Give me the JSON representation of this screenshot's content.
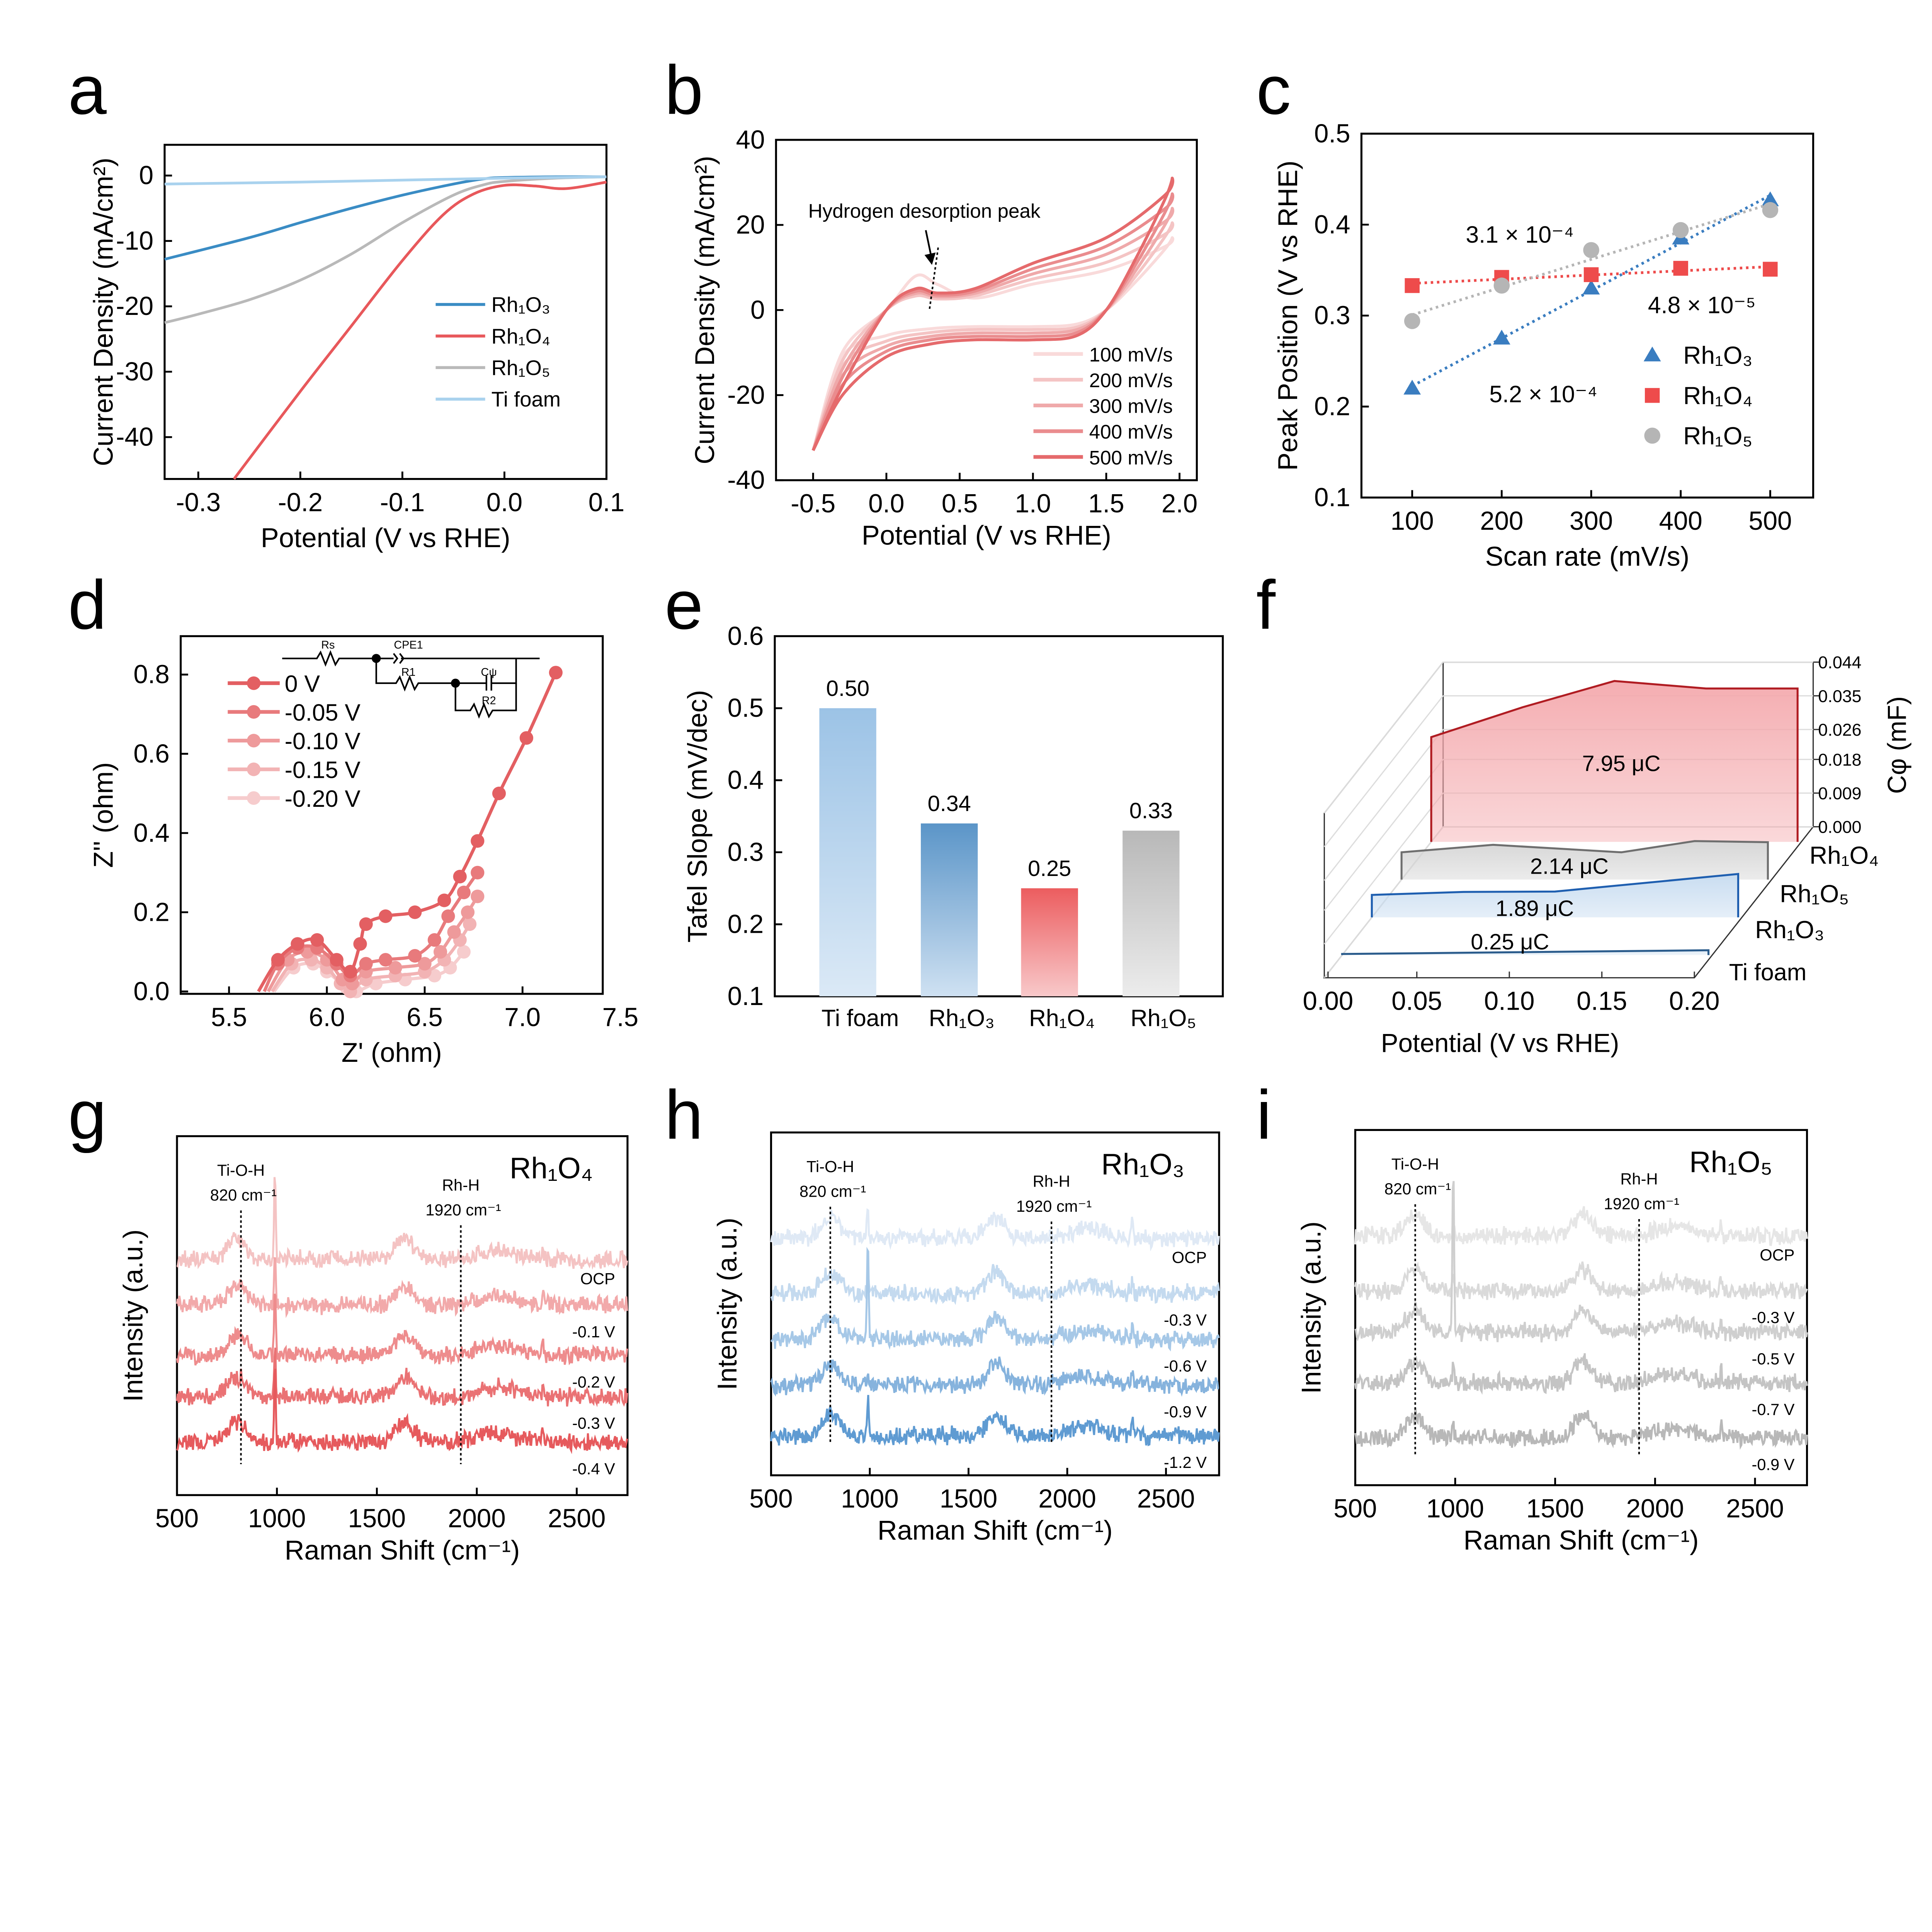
{
  "chart_data": [
    {
      "panel": "a",
      "type": "line",
      "xlabel": "Potential (V vs RHE)",
      "ylabel": "Current Density (mA/cm²)",
      "xlim": [
        -0.333,
        0.1
      ],
      "ylim": [
        -46.4,
        4.7
      ],
      "xticks": [
        -0.3,
        -0.2,
        -0.1,
        0.0,
        0.1
      ],
      "xtick_labels": [
        "-0.3",
        "-0.2",
        "-0.1",
        "0.0",
        "0.1"
      ],
      "yticks": [
        0,
        -10,
        -20,
        -30,
        -40
      ],
      "ytick_labels": [
        "0",
        "-10",
        "-20",
        "-30",
        "-40"
      ],
      "legend_position": "lower-right",
      "series": [
        {
          "name": "Rh₁O₃",
          "color": "#3a8cc4",
          "x": [
            -0.333,
            -0.25,
            -0.2,
            -0.15,
            -0.1,
            -0.05,
            -0.02,
            0.0,
            0.05,
            0.1
          ],
          "y": [
            -12.8,
            -9.5,
            -7.2,
            -5.0,
            -3.0,
            -1.3,
            -0.5,
            -0.3,
            -0.2,
            -0.2
          ]
        },
        {
          "name": "Rh₁O₄",
          "color": "#e8585b",
          "x": [
            -0.265,
            -0.2,
            -0.15,
            -0.1,
            -0.06,
            -0.03,
            0.0,
            0.03,
            0.06,
            0.1
          ],
          "y": [
            -46.4,
            -33,
            -23,
            -13,
            -6,
            -2.8,
            -1.5,
            -1.6,
            -2.0,
            -1.0
          ]
        },
        {
          "name": "Rh₁O₅",
          "color": "#b9b9b9",
          "x": [
            -0.333,
            -0.3,
            -0.25,
            -0.2,
            -0.15,
            -0.1,
            -0.05,
            -0.02,
            0.0,
            0.05,
            0.1
          ],
          "y": [
            -22.5,
            -21.2,
            -19,
            -16,
            -12,
            -7.2,
            -3.0,
            -1.4,
            -0.9,
            -0.4,
            -0.2
          ]
        },
        {
          "name": "Ti foam",
          "color": "#a9d2ee",
          "x": [
            -0.333,
            -0.2,
            -0.1,
            0.0,
            0.1
          ],
          "y": [
            -1.3,
            -1.0,
            -0.7,
            -0.4,
            -0.2
          ]
        }
      ]
    },
    {
      "panel": "b",
      "type": "line",
      "xlabel": "Potential (V vs RHE)",
      "ylabel": "Current Density (mA/cm²)",
      "xlim": [
        -0.753,
        2.118
      ],
      "ylim": [
        -40,
        40
      ],
      "xticks": [
        -0.5,
        0.0,
        0.5,
        1.0,
        1.5,
        2.0
      ],
      "xtick_labels": [
        "-0.5",
        "0.0",
        "0.5",
        "1.0",
        "1.5",
        "2.0"
      ],
      "yticks": [
        40,
        20,
        0,
        -20,
        -40
      ],
      "ytick_labels": [
        "40",
        "20",
        "0",
        "-20",
        "-40"
      ],
      "annotation": "Hydrogen desorption peak",
      "legend_position": "lower-right",
      "x": [
        -0.5,
        -0.3,
        0,
        0.3,
        0.6,
        1.0,
        1.3,
        1.5,
        1.7,
        1.9,
        1.95,
        1.9,
        1.5,
        1.0,
        0.6,
        0.35,
        0.2,
        0,
        -0.3,
        -0.5
      ],
      "series": [
        {
          "name": "100 mV/s",
          "color": "#f9dada",
          "y": [
            -33,
            -11,
            -6,
            -4.4,
            -3.9,
            -3.9,
            -3.3,
            0,
            6.6,
            14.3,
            17,
            14.9,
            9.4,
            6.1,
            2.8,
            6,
            8,
            0,
            -9.9,
            -33
          ]
        },
        {
          "name": "200 mV/s",
          "color": "#f4c4c4",
          "y": [
            -33,
            -13.2,
            -7.3,
            -5.3,
            -4.6,
            -4.6,
            -4.0,
            0,
            7.9,
            17.2,
            20.5,
            17.8,
            11.2,
            7.3,
            3.3,
            2.6,
            3.3,
            0,
            -11.9,
            -33
          ]
        },
        {
          "name": "300 mV/s",
          "color": "#efa9aa",
          "y": [
            -33,
            -15.4,
            -8.5,
            -6.2,
            -5.4,
            -5.4,
            -4.6,
            0,
            9.2,
            20.0,
            23.9,
            20.8,
            13.1,
            8.5,
            3.9,
            3.1,
            3.9,
            0,
            -13.9,
            -33
          ]
        },
        {
          "name": "400 mV/s",
          "color": "#ea8c8e",
          "y": [
            -33,
            -17.6,
            -9.7,
            -7.0,
            -6.2,
            -6.2,
            -5.3,
            0,
            10.6,
            22.9,
            27.3,
            23.8,
            15.0,
            9.7,
            4.4,
            3.5,
            4.4,
            0,
            -15.8,
            -33
          ]
        },
        {
          "name": "500 mV/s",
          "color": "#e56a6c",
          "y": [
            -33,
            -20,
            -11,
            -8,
            -7,
            -7,
            -6,
            0,
            12,
            26,
            31,
            27,
            17,
            11,
            5,
            4,
            5,
            0,
            -18,
            -33
          ]
        }
      ]
    },
    {
      "panel": "c",
      "type": "scatter",
      "xlabel": "Scan rate (mV/s)",
      "ylabel": "Peak Position (V vs RHE)",
      "xlim": [
        43.3,
        548
      ],
      "ylim": [
        0.1,
        0.5
      ],
      "xticks": [
        100,
        200,
        300,
        400,
        500
      ],
      "xtick_labels": [
        "100",
        "200",
        "300",
        "400",
        "500"
      ],
      "yticks": [
        0.1,
        0.2,
        0.3,
        0.4,
        0.5
      ],
      "ytick_labels": [
        "0.1",
        "0.2",
        "0.3",
        "0.4",
        "0.5"
      ],
      "legend_position": "lower-right",
      "x": [
        100,
        200,
        300,
        400,
        500
      ],
      "series": [
        {
          "name": "Rh₁O₃",
          "color": "#3a7dc0",
          "marker": "triangle",
          "y": [
            0.22,
            0.275,
            0.33,
            0.385,
            0.427
          ],
          "slope_label": "5.2 × 10⁻⁴"
        },
        {
          "name": "Rh₁O₄",
          "color": "#ee4b4b",
          "marker": "square",
          "y": [
            0.333,
            0.342,
            0.345,
            0.352,
            0.351
          ],
          "slope_label": "4.8 × 10⁻⁵"
        },
        {
          "name": "Rh₁O₅",
          "color": "#b5b5b5",
          "marker": "circle",
          "y": [
            0.294,
            0.333,
            0.372,
            0.394,
            0.416
          ],
          "slope_label": "3.1 × 10⁻⁴"
        }
      ]
    },
    {
      "panel": "d",
      "type": "line",
      "xlabel": "Z' (ohm)",
      "ylabel": "Z'' (ohm)",
      "xlim": [
        5.253,
        7.41
      ],
      "ylim": [
        -0.006,
        0.897
      ],
      "xticks": [
        5.5,
        6.0,
        6.5,
        7.0,
        7.5
      ],
      "xtick_labels": [
        "5.5",
        "6.0",
        "6.5",
        "7.0",
        "7.5"
      ],
      "yticks": [
        0.0,
        0.2,
        0.4,
        0.6,
        0.8
      ],
      "ytick_labels": [
        "0.0",
        "0.2",
        "0.4",
        "0.6",
        "0.8"
      ],
      "legend_position": "top-left",
      "circuit_labels": {
        "rs": "Rs",
        "cpe1": "CPE1",
        "r1": "R1",
        "cpsi": "Cψ",
        "r2": "R2"
      },
      "series": [
        {
          "name": "0 V",
          "color": "#e35f62",
          "x": [
            5.65,
            5.75,
            5.85,
            5.95,
            6.05,
            6.12,
            6.17,
            6.2,
            6.3,
            6.45,
            6.6,
            6.68,
            6.77,
            6.88,
            7.02,
            7.17
          ],
          "y": [
            0,
            0.08,
            0.12,
            0.13,
            0.08,
            0.05,
            0.12,
            0.17,
            0.19,
            0.2,
            0.23,
            0.29,
            0.38,
            0.5,
            0.64,
            0.805
          ]
        },
        {
          "name": "-0.05 V",
          "color": "#e87a7c",
          "x": [
            5.68,
            5.75,
            5.85,
            5.95,
            6.05,
            6.12,
            6.2,
            6.3,
            6.45,
            6.55,
            6.62,
            6.7,
            6.77
          ],
          "y": [
            0,
            0.07,
            0.11,
            0.11,
            0.07,
            0.04,
            0.07,
            0.08,
            0.09,
            0.13,
            0.19,
            0.25,
            0.3
          ]
        },
        {
          "name": "-0.10 V",
          "color": "#ee9a9b",
          "x": [
            5.7,
            5.8,
            5.9,
            6.0,
            6.08,
            6.13,
            6.2,
            6.35,
            6.5,
            6.58,
            6.65,
            6.72,
            6.77
          ],
          "y": [
            0,
            0.08,
            0.1,
            0.08,
            0.03,
            0.02,
            0.05,
            0.06,
            0.07,
            0.1,
            0.15,
            0.2,
            0.24
          ]
        },
        {
          "name": "-0.15 V",
          "color": "#f2b3b4",
          "x": [
            5.72,
            5.82,
            5.92,
            6.0,
            6.07,
            6.12,
            6.2,
            6.35,
            6.5,
            6.6,
            6.68,
            6.73
          ],
          "y": [
            0,
            0.07,
            0.08,
            0.06,
            0.02,
            0.0,
            0.03,
            0.04,
            0.05,
            0.08,
            0.13,
            0.17
          ]
        },
        {
          "name": "-0.20 V",
          "color": "#f6cccd",
          "x": [
            5.73,
            5.83,
            5.93,
            6.0,
            6.1,
            6.15,
            6.25,
            6.4,
            6.55,
            6.63,
            6.7
          ],
          "y": [
            0,
            0.06,
            0.07,
            0.05,
            0.01,
            0.0,
            0.02,
            0.03,
            0.04,
            0.06,
            0.1
          ]
        }
      ]
    },
    {
      "panel": "e",
      "type": "bar",
      "ylabel": "Tafel Slope (mV/dec)",
      "ylim": [
        0.1,
        0.6
      ],
      "yticks": [
        0.1,
        0.2,
        0.3,
        0.4,
        0.5,
        0.6
      ],
      "ytick_labels": [
        "0.1",
        "0.2",
        "0.3",
        "0.4",
        "0.5",
        "0.6"
      ],
      "categories": [
        "Ti foam",
        "Rh₁O₃",
        "Rh₁O₄",
        "Rh₁O₅"
      ],
      "values": [
        0.5,
        0.34,
        0.25,
        0.33
      ],
      "value_labels": [
        "0.50",
        "0.34",
        "0.25",
        "0.33"
      ],
      "colors": [
        [
          "#9cc3e6",
          "#dbe9f6"
        ],
        [
          "#5b95c8",
          "#cfe1f2"
        ],
        [
          "#ec5d5f",
          "#f8c9ca"
        ],
        [
          "#b8b8b8",
          "#ececec"
        ]
      ],
      "label_colors": [
        "#9cc3e6",
        "#2f75b5",
        "#e8383b",
        "#a0a0a0"
      ]
    },
    {
      "panel": "f",
      "type": "area",
      "xlabel": "Potential (V vs RHE)",
      "ylabel": "Cφ (mF)",
      "xlim": [
        0,
        0.2
      ],
      "zlim": [
        0,
        0.044
      ],
      "xticks": [
        0,
        0.05,
        0.1,
        0.15,
        0.2
      ],
      "xtick_labels": [
        "0.00",
        "0.05",
        "0.10",
        "0.15",
        "0.20"
      ],
      "zticks": [
        0.044,
        0.035,
        0.026,
        0.018,
        0.009,
        0.0
      ],
      "ztick_labels": [
        "0.044",
        "0.035",
        "0.026",
        "0.018",
        "0.009",
        "0.000"
      ],
      "series": [
        {
          "name": "Rh₁O₄",
          "charge": "7.95 μC",
          "color": "#b01c22",
          "fill": "#f4a9ad",
          "label_color": "#c00000",
          "x": [
            0,
            0.05,
            0.1,
            0.15,
            0.2
          ],
          "y": [
            0.028,
            0.036,
            0.043,
            0.041,
            0.041
          ]
        },
        {
          "name": "Rh₁O₅",
          "charge": "2.14 μC",
          "color": "#6f6f6f",
          "fill": "#d4d4d4",
          "label_color": "#8a8a8a",
          "x": [
            0,
            0.05,
            0.12,
            0.16,
            0.2
          ],
          "y": [
            0.0073,
            0.0093,
            0.0073,
            0.0103,
            0.01
          ]
        },
        {
          "name": "Rh₁O₃",
          "charge": "1.89 μC",
          "color": "#1f5fb0",
          "fill": "#c6dbf0",
          "label_color": "#4a6fb5",
          "x": [
            0,
            0.05,
            0.1,
            0.2
          ],
          "y": [
            0.006,
            0.0068,
            0.0069,
            0.0116
          ]
        },
        {
          "name": "Ti foam",
          "charge": "0.25 μC",
          "color": "#2b5c8c",
          "fill": "#dbe8f4",
          "label_color": "#a9b8dd",
          "x": [
            0,
            0.1,
            0.2
          ],
          "y": [
            0.0003,
            0.0008,
            0.0013
          ]
        }
      ]
    },
    {
      "panel": "g",
      "type": "line",
      "title": "Rh₁O₄",
      "title_color": "#c00000",
      "xlabel": "Raman Shift (cm⁻¹)",
      "ylabel": "Intensity (a.u.)",
      "xlim": [
        500,
        2754
      ],
      "ylim": [
        -1.16,
        6.7
      ],
      "xticks": [
        500,
        1000,
        1500,
        2000,
        2500
      ],
      "xtick_labels": [
        "500",
        "1000",
        "1500",
        "2000",
        "2500"
      ],
      "annotations": [
        {
          "x": 820,
          "name": "Ti-O-H",
          "shift": "820 cm⁻¹"
        },
        {
          "x": 1920,
          "name": "Rh-H",
          "shift": "1920 cm⁻¹"
        }
      ],
      "traces": [
        {
          "label": "OCP",
          "offset": 4.0,
          "color": "#f4c3c3",
          "spike": 1.9
        },
        {
          "label": "-0.1 V",
          "offset": 3.0,
          "color": "#f2a9aa",
          "spike": 1.2
        },
        {
          "label": "-0.2 V",
          "offset": 1.9,
          "color": "#ee8c8d",
          "spike": 1.4
        },
        {
          "label": "-0.3 V",
          "offset": 1.0,
          "color": "#ea7274",
          "spike": 1.2
        },
        {
          "label": "-0.4 V",
          "offset": 0.0,
          "color": "#e65a5d",
          "spike": 1.75
        }
      ]
    },
    {
      "panel": "h",
      "type": "line",
      "title": "Rh₁O₃",
      "title_color": "#1f4e79",
      "xlabel": "Raman Shift (cm⁻¹)",
      "ylabel": "Intensity (a.u.)",
      "xlim": [
        500,
        2769
      ],
      "ylim": [
        -0.86,
        6.6
      ],
      "xticks": [
        500,
        1000,
        1500,
        2000,
        2500
      ],
      "xtick_labels": [
        "500",
        "1000",
        "1500",
        "2000",
        "2500"
      ],
      "annotations": [
        {
          "x": 800,
          "name": "Ti-O-H",
          "shift": "820 cm⁻¹"
        },
        {
          "x": 1920,
          "name": "Rh-H",
          "shift": "1920 cm⁻¹"
        }
      ],
      "traces": [
        {
          "label": "OCP",
          "offset": 4.3,
          "color": "#dfe9f5",
          "spike": 0.7
        },
        {
          "label": "-0.3 V",
          "offset": 3.1,
          "color": "#c4daef",
          "spike": 0.3
        },
        {
          "label": "-0.6 V",
          "offset": 2.1,
          "color": "#a6c8e7",
          "spike": 2.3
        },
        {
          "label": "-0.9 V",
          "offset": 1.1,
          "color": "#86b3dd",
          "spike": 0.3
        },
        {
          "label": "-1.2 V",
          "offset": 0.0,
          "color": "#5f9bd2",
          "spike": 0.8
        }
      ]
    },
    {
      "panel": "i",
      "type": "line",
      "title": "Rh₁O₅",
      "title_color": "#999999",
      "xlabel": "Raman Shift (cm⁻¹)",
      "ylabel": "Intensity (a.u.)",
      "xlim": [
        500,
        2760
      ],
      "ylim": [
        -1.03,
        6.7
      ],
      "xticks": [
        500,
        1000,
        1500,
        2000,
        2500
      ],
      "xtick_labels": [
        "500",
        "1000",
        "1500",
        "2000",
        "2500"
      ],
      "annotations": [
        {
          "x": 800,
          "name": "Ti-O-H",
          "shift": "820 cm⁻¹"
        },
        {
          "x": 1920,
          "name": "Rh-H",
          "shift": "1920 cm⁻¹"
        }
      ],
      "traces": [
        {
          "label": "OCP",
          "offset": 4.4,
          "color": "#e6e6e6",
          "spike": 0.4
        },
        {
          "label": "-0.3 V",
          "offset": 3.2,
          "color": "#dadada",
          "spike": 0.4
        },
        {
          "label": "-0.5 V",
          "offset": 2.3,
          "color": "#cfcfcf",
          "spike": 3.7
        },
        {
          "label": "-0.7 V",
          "offset": 1.2,
          "color": "#c4c4c4",
          "spike": 0.5
        },
        {
          "label": "-0.9 V",
          "offset": 0.0,
          "color": "#b8b8b8",
          "spike": 0.5
        }
      ]
    }
  ]
}
